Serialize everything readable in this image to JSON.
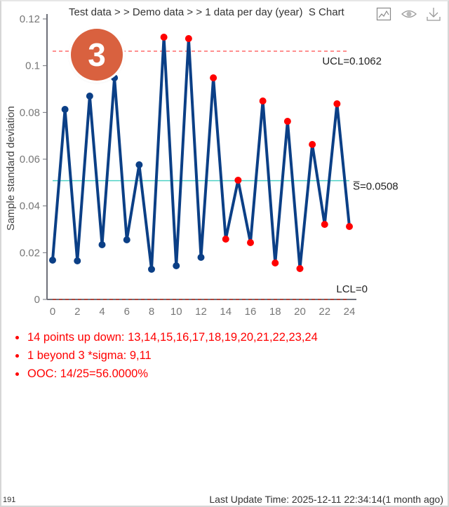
{
  "header": {
    "breadcrumb": "Test data >  > Demo data >  > 1 data per day (year)",
    "chart_name": "S Chart",
    "icons": [
      "line-chart-icon",
      "eye-icon",
      "download-icon"
    ]
  },
  "badge": {
    "number": "3",
    "color": "#d9613f"
  },
  "chart_data": {
    "type": "line",
    "title": "S Chart",
    "xlabel": "",
    "ylabel": "Sample standard deviation",
    "xlim": [
      0,
      24
    ],
    "ylim": [
      0,
      0.12
    ],
    "x_ticks": [
      "0",
      "2",
      "4",
      "6",
      "8",
      "10",
      "12",
      "14",
      "16",
      "18",
      "20",
      "22",
      "24"
    ],
    "y_ticks": [
      "0",
      "0.02",
      "0.04",
      "0.06",
      "0.08",
      "0.1",
      "0.12"
    ],
    "x": [
      0,
      1,
      2,
      3,
      4,
      5,
      6,
      7,
      8,
      9,
      10,
      11,
      12,
      13,
      14,
      15,
      16,
      17,
      18,
      19,
      20,
      21,
      22,
      23,
      24
    ],
    "values": [
      0.0168,
      0.0813,
      0.0165,
      0.087,
      0.0234,
      0.0948,
      0.0255,
      0.0576,
      0.0129,
      0.1122,
      0.0144,
      0.1116,
      0.018,
      0.0948,
      0.0258,
      0.051,
      0.0243,
      0.0849,
      0.0156,
      0.0762,
      0.0132,
      0.0663,
      0.0321,
      0.0837,
      0.0312
    ],
    "flagged": [
      9,
      11,
      13,
      14,
      15,
      16,
      17,
      18,
      19,
      20,
      21,
      22,
      23,
      24
    ],
    "control_lines": {
      "ucl": {
        "value": 0.1062,
        "label": "UCL=0.1062",
        "color": "#ff6b6b"
      },
      "center": {
        "value": 0.0508,
        "label": "S̅=0.0508",
        "color": "#4fd1c5"
      },
      "lcl": {
        "value": 0,
        "label": "LCL=0",
        "color": "#c0392b"
      }
    },
    "colors": {
      "line": "#0b3f86",
      "normal_point": "#0b3f86",
      "flagged_point": "#ff0000"
    },
    "grid": false
  },
  "rules": [
    "14 points up down:  13,14,15,16,17,18,19,20,21,22,23,24",
    "1 beyond 3 *sigma:  9,11",
    "OOC: 14/25=56.0000%"
  ],
  "footer": {
    "id": "191",
    "last_update": "Last Update Time: 2025-12-11 22:34:14(1 month ago)"
  }
}
